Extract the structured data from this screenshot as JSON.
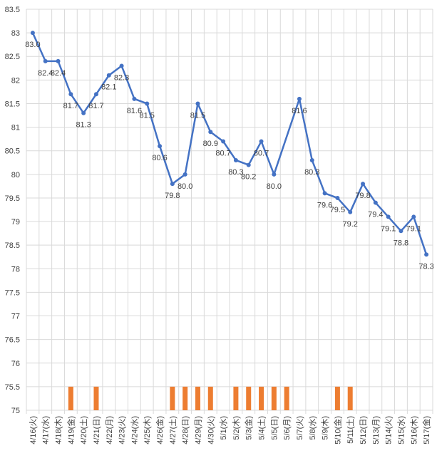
{
  "chart_data": {
    "type": "line",
    "categories": [
      "4/16(火)",
      "4/17(水)",
      "4/18(木)",
      "4/19(金)",
      "4/20(土)",
      "4/21(日)",
      "4/22(月)",
      "4/23(火)",
      "4/24(水)",
      "4/25(木)",
      "4/26(金)",
      "4/27(土)",
      "4/28(日)",
      "4/29(月)",
      "4/30(火)",
      "5/1(水)",
      "5/2(木)",
      "5/3(金)",
      "5/4(土)",
      "5/5(日)",
      "5/6(月)",
      "5/7(火)",
      "5/8(水)",
      "5/9(木)",
      "5/10(金)",
      "5/11(土)",
      "5/12(日)",
      "5/13(月)",
      "5/14(火)",
      "5/15(水)",
      "5/16(木)",
      "5/17(金)"
    ],
    "series": [
      {
        "type": "line",
        "color": "#4472C4",
        "values": [
          83.0,
          82.4,
          82.4,
          81.7,
          81.3,
          81.7,
          82.1,
          82.3,
          81.6,
          81.5,
          80.6,
          79.8,
          80.0,
          81.5,
          80.9,
          80.7,
          80.3,
          80.2,
          80.7,
          80.0,
          null,
          81.6,
          80.3,
          79.6,
          79.5,
          79.2,
          79.8,
          79.4,
          79.1,
          78.8,
          79.1,
          78.3
        ]
      },
      {
        "type": "bar",
        "color": "#ED7D31",
        "values": [
          null,
          null,
          null,
          75.5,
          null,
          75.5,
          null,
          null,
          null,
          null,
          null,
          75.5,
          75.5,
          75.5,
          75.5,
          null,
          75.5,
          75.5,
          75.5,
          75.5,
          75.5,
          null,
          null,
          null,
          75.5,
          75.5,
          null,
          null,
          null,
          null,
          null,
          null
        ]
      }
    ],
    "ylim": [
      75,
      83.5
    ],
    "ytick_step": 0.5,
    "yticks": [
      "75",
      "75.5",
      "76",
      "76.5",
      "77",
      "77.5",
      "78",
      "78.5",
      "79",
      "79.5",
      "80",
      "80.5",
      "81",
      "81.5",
      "82",
      "82.5",
      "83",
      "83.5"
    ],
    "grid": true,
    "data_labels": true
  }
}
